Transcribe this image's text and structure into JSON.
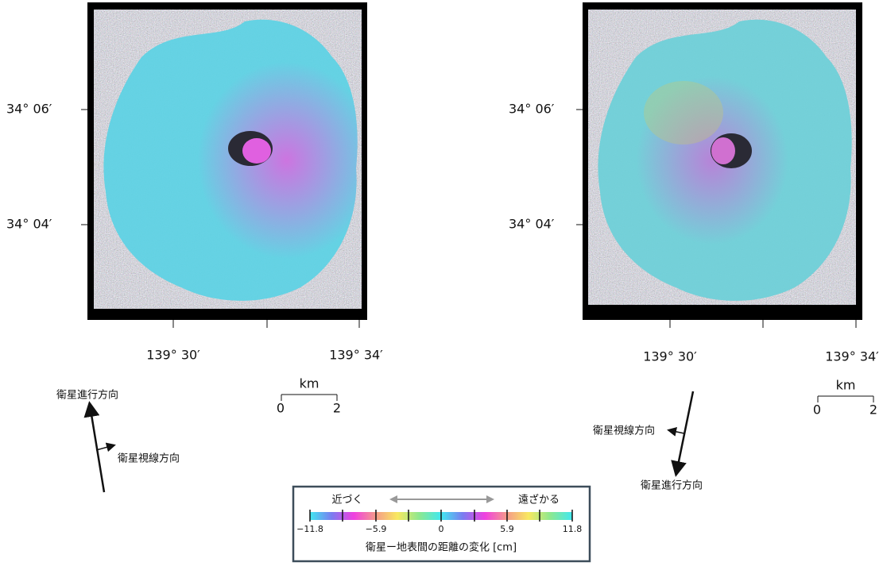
{
  "left_panel": {
    "lat_labels": [
      "34° 06′",
      "34° 04′"
    ],
    "lon_labels": [
      "139° 30′",
      "139° 34′"
    ],
    "scale_bar": {
      "unit": "km",
      "start": "0",
      "end": "2"
    },
    "flight_direction": "衛星進行方向",
    "look_direction": "衛星視線方向"
  },
  "right_panel": {
    "lat_labels": [
      "34° 06′",
      "34° 04′"
    ],
    "lon_labels": [
      "139° 30′",
      "139° 34′"
    ],
    "scale_bar": {
      "unit": "km",
      "start": "0",
      "end": "2"
    },
    "flight_direction": "衛星進行方向",
    "look_direction": "衛星視線方向"
  },
  "legend": {
    "approach": "近づく",
    "recede": "遠ざかる",
    "ticks": [
      "−11.8",
      "−5.9",
      "0",
      "5.9",
      "11.8"
    ],
    "caption": "衛星ー地表間の距離の変化 [cm]"
  }
}
